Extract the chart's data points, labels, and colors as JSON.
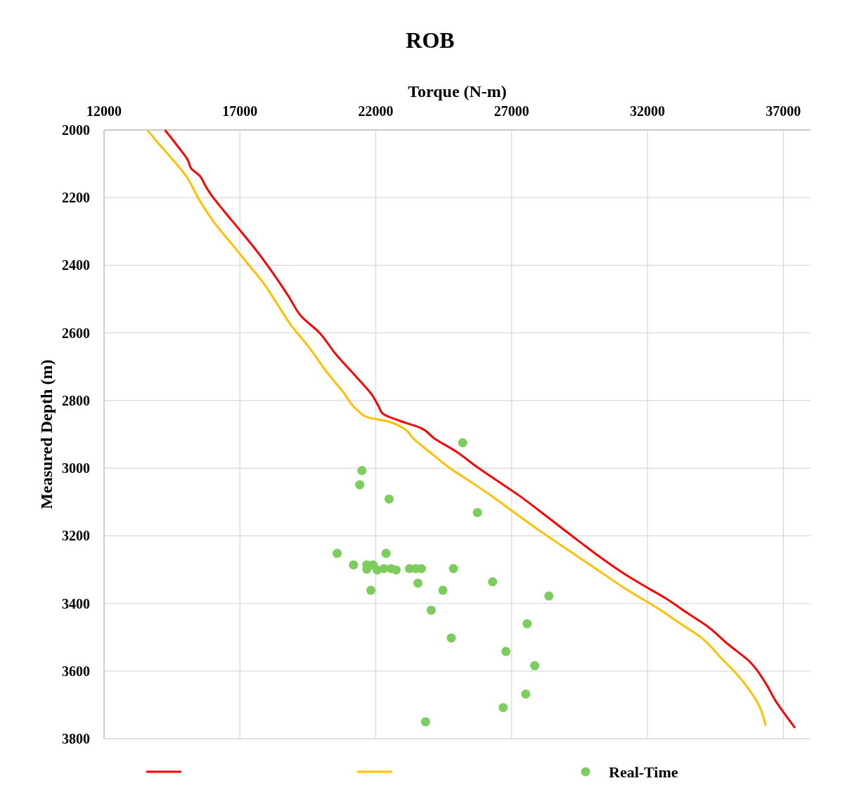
{
  "chart_data": {
    "type": "line",
    "title": "ROB",
    "xlabel": "Torque (N-m)",
    "ylabel": "Measured Depth (m)",
    "xlim": [
      12000,
      38000
    ],
    "xticks": [
      12000,
      17000,
      22000,
      27000,
      32000,
      37000
    ],
    "ylim": [
      3800,
      2000
    ],
    "yticks": [
      2000,
      2200,
      2400,
      2600,
      2800,
      3000,
      3200,
      3400,
      3600,
      3800
    ],
    "grid": true,
    "legend": "bottom",
    "series": [
      {
        "color": "#ff0000",
        "x": [
          14240,
          14750,
          15090,
          15220,
          15530,
          15710,
          15920,
          16430,
          17080,
          17670,
          18240,
          18800,
          19270,
          19910,
          20510,
          21330,
          21850,
          22110,
          22260,
          22880,
          23650,
          24170,
          24940,
          25720,
          26490,
          27260,
          28040,
          28810,
          29590,
          30360,
          31120,
          31900,
          32670,
          33440,
          34210,
          34970,
          35770,
          36350,
          36730,
          36990,
          37430
        ],
        "values": [
          2000,
          2052,
          2090,
          2115,
          2136,
          2162,
          2189,
          2241,
          2304,
          2363,
          2426,
          2493,
          2552,
          2598,
          2661,
          2734,
          2782,
          2818,
          2839,
          2860,
          2881,
          2913,
          2950,
          2996,
          3038,
          3080,
          3127,
          3175,
          3223,
          3269,
          3311,
          3349,
          3385,
          3427,
          3468,
          3521,
          3573,
          3636,
          3690,
          3720,
          3768
        ]
      },
      {
        "color": "#ffc000",
        "x": [
          13600,
          13910,
          14370,
          15020,
          15530,
          16050,
          16690,
          17330,
          17850,
          18370,
          18880,
          19520,
          20170,
          20810,
          21330,
          21720,
          22360,
          23000,
          23390,
          24030,
          24680,
          25450,
          26220,
          27130,
          28030,
          28800,
          29570,
          30350,
          31120,
          31770,
          32410,
          33180,
          33960,
          34730,
          35240,
          35760,
          36150,
          36350
        ],
        "values": [
          2000,
          2031,
          2073,
          2136,
          2210,
          2273,
          2336,
          2399,
          2451,
          2514,
          2577,
          2640,
          2713,
          2776,
          2829,
          2850,
          2860,
          2881,
          2913,
          2955,
          2997,
          3038,
          3080,
          3133,
          3185,
          3227,
          3269,
          3311,
          3353,
          3385,
          3416,
          3458,
          3500,
          3563,
          3605,
          3657,
          3710,
          3762
        ]
      },
      {
        "type": "scatter",
        "name": "Real-Time",
        "color": "#7dcc5e",
        "marker": "circle",
        "x": [
          25200,
          21490,
          21410,
          22490,
          25740,
          20580,
          22380,
          21180,
          21670,
          21900,
          21670,
          22050,
          22300,
          22570,
          22750,
          23240,
          23470,
          23680,
          24860,
          23550,
          26300,
          21820,
          24470,
          28370,
          24040,
          27570,
          24780,
          26790,
          27850,
          27520,
          26690,
          23830
        ],
        "values": [
          2925,
          3007,
          3049,
          3091,
          3131,
          3252,
          3252,
          3286,
          3286,
          3286,
          3299,
          3301,
          3297,
          3297,
          3301,
          3297,
          3297,
          3297,
          3297,
          3340,
          3336,
          3361,
          3361,
          3378,
          3420,
          3460,
          3502,
          3542,
          3584,
          3668,
          3708,
          3750
        ]
      }
    ]
  }
}
